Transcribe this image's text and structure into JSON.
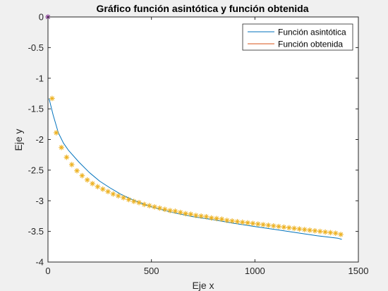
{
  "chart_data": {
    "type": "line",
    "title": "Gráfico función asintótica y función obtenida",
    "xlabel": "Eje x",
    "ylabel": "Eje y",
    "xlim": [
      0,
      1500
    ],
    "ylim": [
      -4,
      0
    ],
    "xticks": [
      0,
      500,
      1000,
      1500
    ],
    "yticks": [
      0,
      -0.5,
      -1,
      -1.5,
      -2,
      -2.5,
      -3,
      -3.5,
      -4
    ],
    "grid": false,
    "legend_location": "top-right",
    "series": [
      {
        "name": "Función asintótica",
        "style": "line",
        "color": "#0072BD",
        "x": [
          5,
          25,
          50,
          75,
          100,
          150,
          200,
          250,
          300,
          350,
          400,
          450,
          500,
          600,
          700,
          800,
          900,
          1000,
          1100,
          1200,
          1300,
          1400,
          1420
        ],
        "y": [
          -1.33,
          -1.6,
          -1.89,
          -2.06,
          -2.18,
          -2.37,
          -2.54,
          -2.68,
          -2.79,
          -2.89,
          -2.97,
          -3.04,
          -3.1,
          -3.19,
          -3.26,
          -3.31,
          -3.37,
          -3.42,
          -3.47,
          -3.52,
          -3.57,
          -3.61,
          -3.63
        ]
      },
      {
        "name": "Función obtenida",
        "style": "markers",
        "marker": "*",
        "color": "#EDB120",
        "x": [
          0,
          20,
          40,
          65,
          90,
          115,
          140,
          165,
          190,
          215,
          240,
          265,
          290,
          315,
          340,
          365,
          390,
          415,
          440,
          465,
          490,
          515,
          540,
          565,
          590,
          615,
          640,
          665,
          690,
          715,
          740,
          765,
          790,
          815,
          840,
          865,
          890,
          915,
          940,
          965,
          990,
          1015,
          1040,
          1065,
          1090,
          1115,
          1140,
          1165,
          1190,
          1215,
          1240,
          1265,
          1290,
          1315,
          1340,
          1365,
          1390,
          1415
        ],
        "y": [
          0,
          -1.33,
          -1.89,
          -2.13,
          -2.29,
          -2.41,
          -2.51,
          -2.59,
          -2.66,
          -2.72,
          -2.77,
          -2.81,
          -2.85,
          -2.89,
          -2.92,
          -2.95,
          -2.98,
          -3.01,
          -3.03,
          -3.06,
          -3.08,
          -3.1,
          -3.12,
          -3.14,
          -3.16,
          -3.17,
          -3.19,
          -3.21,
          -3.22,
          -3.24,
          -3.25,
          -3.26,
          -3.28,
          -3.29,
          -3.3,
          -3.32,
          -3.33,
          -3.34,
          -3.35,
          -3.36,
          -3.37,
          -3.38,
          -3.39,
          -3.4,
          -3.41,
          -3.42,
          -3.43,
          -3.44,
          -3.45,
          -3.46,
          -3.47,
          -3.48,
          -3.49,
          -3.5,
          -3.51,
          -3.52,
          -3.53,
          -3.55
        ]
      }
    ]
  }
}
